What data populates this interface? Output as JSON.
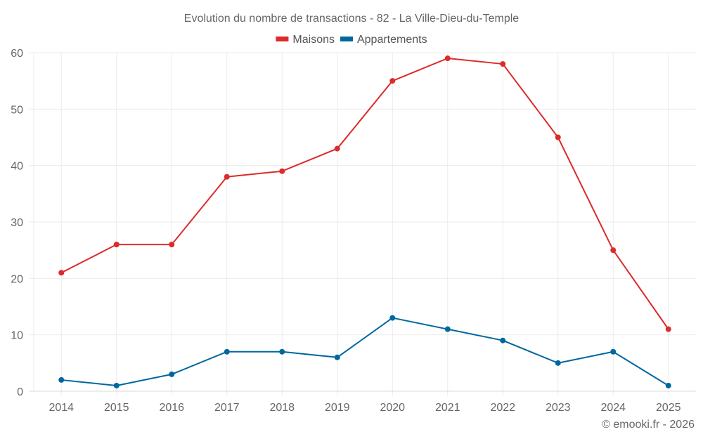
{
  "chart_data": {
    "type": "line",
    "title": "Evolution du nombre de transactions - 82 - La Ville-Dieu-du-Temple",
    "xlabel": "",
    "ylabel": "",
    "x": [
      "2014",
      "2015",
      "2016",
      "2017",
      "2018",
      "2019",
      "2020",
      "2021",
      "2022",
      "2023",
      "2024",
      "2025"
    ],
    "series": [
      {
        "name": "Maisons",
        "color": "#dd2a2a",
        "values": [
          21,
          26,
          26,
          38,
          39,
          43,
          55,
          59,
          58,
          45,
          25,
          11
        ]
      },
      {
        "name": "Appartements",
        "color": "#00679f",
        "values": [
          2,
          1,
          3,
          7,
          7,
          6,
          13,
          11,
          9,
          5,
          7,
          1
        ]
      }
    ],
    "ylim": [
      0,
      60
    ],
    "yticks": [
      0,
      10,
      20,
      30,
      40,
      50,
      60
    ],
    "grid": true,
    "legend_position": "top-center"
  },
  "credit": "© emooki.fr - 2026"
}
